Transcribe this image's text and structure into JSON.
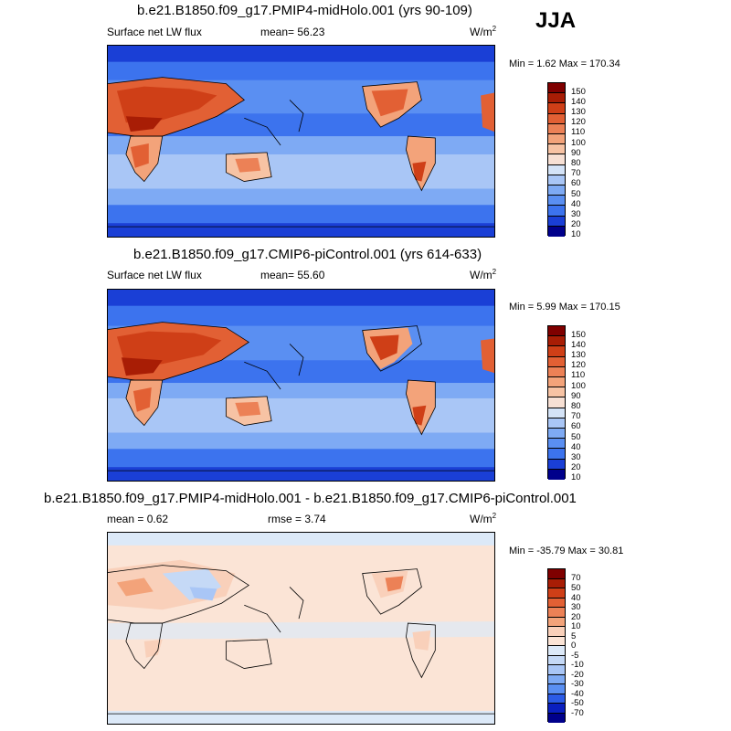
{
  "season": "JJA",
  "panels": [
    {
      "title": "b.e21.B1850.f09_g17.PMIP4-midHolo.001 (yrs 90-109)",
      "left_label": "Surface net LW flux",
      "center_label": "mean=  56.23",
      "units": "W/m",
      "units_sup": "2",
      "min_max": "Min =   1.62 Max = 170.34",
      "colorbar_levels": [
        "150",
        "140",
        "130",
        "120",
        "110",
        "100",
        "90",
        "80",
        "70",
        "60",
        "50",
        "40",
        "30",
        "20",
        "10"
      ]
    },
    {
      "title": "b.e21.B1850.f09_g17.CMIP6-piControl.001 (yrs 614-633)",
      "left_label": "Surface net LW flux",
      "center_label": "mean=  55.60",
      "units": "W/m",
      "units_sup": "2",
      "min_max": "Min =   5.99 Max = 170.15",
      "colorbar_levels": [
        "150",
        "140",
        "130",
        "120",
        "110",
        "100",
        "90",
        "80",
        "70",
        "60",
        "50",
        "40",
        "30",
        "20",
        "10"
      ]
    },
    {
      "title": "b.e21.B1850.f09_g17.PMIP4-midHolo.001 - b.e21.B1850.f09_g17.CMIP6-piControl.001",
      "left_label": "mean =   0.62",
      "center_label": "rmse =   3.74",
      "units": "W/m",
      "units_sup": "2",
      "min_max": "Min = -35.79 Max =  30.81",
      "colorbar_levels": [
        "70",
        "50",
        "40",
        "30",
        "20",
        "10",
        "5",
        "0",
        "-5",
        "-10",
        "-20",
        "-30",
        "-40",
        "-50",
        "-70"
      ]
    }
  ],
  "chart_data": {
    "type": "heatmap",
    "season": "JJA",
    "variable": "Surface net LW flux",
    "units": "W/m2",
    "panels": [
      {
        "case": "b.e21.B1850.f09_g17.PMIP4-midHolo.001",
        "years": "90-109",
        "mean": 56.23,
        "min": 1.62,
        "max": 170.34,
        "contour_levels": [
          10,
          20,
          30,
          40,
          50,
          60,
          70,
          80,
          90,
          100,
          110,
          120,
          130,
          140,
          150
        ]
      },
      {
        "case": "b.e21.B1850.f09_g17.CMIP6-piControl.001",
        "years": "614-633",
        "mean": 55.6,
        "min": 5.99,
        "max": 170.15,
        "contour_levels": [
          10,
          20,
          30,
          40,
          50,
          60,
          70,
          80,
          90,
          100,
          110,
          120,
          130,
          140,
          150
        ]
      },
      {
        "case": "difference",
        "mean": 0.62,
        "rmse": 3.74,
        "min": -35.79,
        "max": 30.81,
        "contour_levels": [
          -70,
          -50,
          -40,
          -30,
          -20,
          -10,
          -5,
          0,
          5,
          10,
          20,
          30,
          40,
          50,
          70
        ]
      }
    ],
    "colors": {
      "seq": [
        "#00008b",
        "#0a1fbf",
        "#1a3fd6",
        "#2b5be6",
        "#3c73ee",
        "#5a8ff2",
        "#7eaaf4",
        "#a9c6f6",
        "#d4e3f7",
        "#f7e0d4",
        "#f7c3a4",
        "#f3a37a",
        "#ec8156",
        "#e26034",
        "#cf3f17",
        "#a81d05",
        "#7f0000"
      ],
      "diff": [
        "#00008b",
        "#0a1fbf",
        "#2b5be6",
        "#5a8ff2",
        "#7eaaf4",
        "#a9c6f6",
        "#c5d9f6",
        "#dce9f8",
        "#fbe4d6",
        "#f9d0ba",
        "#f3a37a",
        "#ec8156",
        "#e26034",
        "#cf3f17",
        "#a81d05",
        "#7f0000"
      ]
    }
  }
}
